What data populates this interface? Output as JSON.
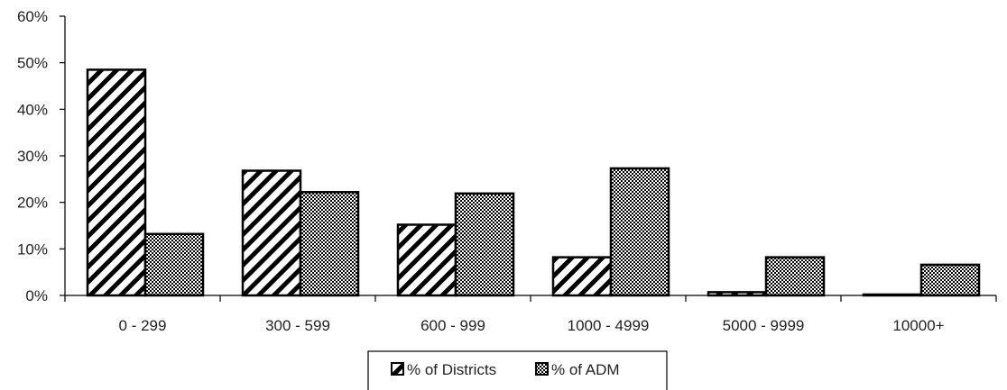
{
  "chart_data": {
    "type": "bar",
    "title": "",
    "xlabel": "",
    "ylabel": "",
    "categories": [
      "0 - 299",
      "300 - 599",
      "600 - 999",
      "1000 - 4999",
      "5000 - 9999",
      "10000+"
    ],
    "series": [
      {
        "name": "% of Districts",
        "values": [
          48.5,
          26.8,
          15.2,
          8.2,
          0.7,
          0.2
        ],
        "pattern": "diagonal-hatch"
      },
      {
        "name": "% of ADM",
        "values": [
          13.2,
          22.2,
          21.9,
          27.3,
          8.2,
          6.6
        ],
        "pattern": "dotted-crosshatch"
      }
    ],
    "ylim": [
      0,
      60
    ],
    "yticks": [
      "0%",
      "10%",
      "20%",
      "30%",
      "40%",
      "50%",
      "60%"
    ],
    "y_tick_values": [
      0,
      10,
      20,
      30,
      40,
      50,
      60
    ],
    "grid": false,
    "legend": "bottom-center",
    "colors": {
      "stroke": "#000000",
      "fill": "#ffffff"
    }
  }
}
